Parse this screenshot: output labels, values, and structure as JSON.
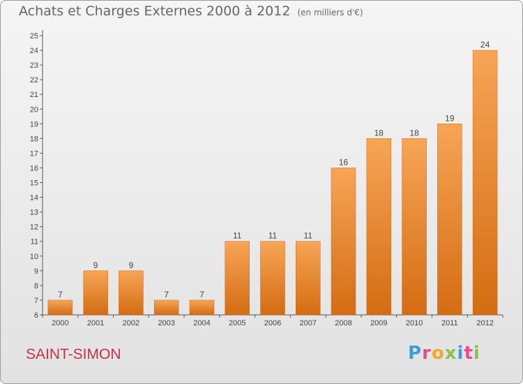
{
  "header": {
    "title": "Achats et Charges Externes 2000 à 2012",
    "unit": "(en milliers d'€)"
  },
  "footer": {
    "commune": "SAINT-SIMON",
    "logo_letters": [
      "P",
      "r",
      "o",
      "x",
      "i",
      "t",
      "i"
    ],
    "logo_colors": [
      "#3aa0d8",
      "#e84c8b",
      "#f5a623",
      "#8bc34a",
      "#3aa0d8",
      "#e84c8b",
      "#8bc34a"
    ]
  },
  "chart_data": {
    "type": "bar",
    "title": "Achats et Charges Externes 2000 à 2012",
    "categories": [
      "2000",
      "2001",
      "2002",
      "2003",
      "2004",
      "2005",
      "2006",
      "2007",
      "2008",
      "2009",
      "2010",
      "2011",
      "2012"
    ],
    "values": [
      7,
      9,
      9,
      7,
      7,
      11,
      11,
      11,
      16,
      18,
      18,
      19,
      24
    ],
    "data_labels": [
      "7",
      "9",
      "9",
      "7",
      "7",
      "11",
      "11",
      "11",
      "16",
      "18",
      "18",
      "19",
      "24"
    ],
    "ylim": [
      6,
      25
    ],
    "yticks": [
      6,
      7,
      8,
      9,
      10,
      11,
      12,
      13,
      14,
      15,
      16,
      17,
      18,
      19,
      20,
      21,
      22,
      23,
      24,
      25
    ],
    "xlabel": "",
    "ylabel": "",
    "grid": false,
    "bar_color": "#ef8c2b",
    "bar_color_light": "#f7a556",
    "bar_color_dark": "#d46c12"
  }
}
